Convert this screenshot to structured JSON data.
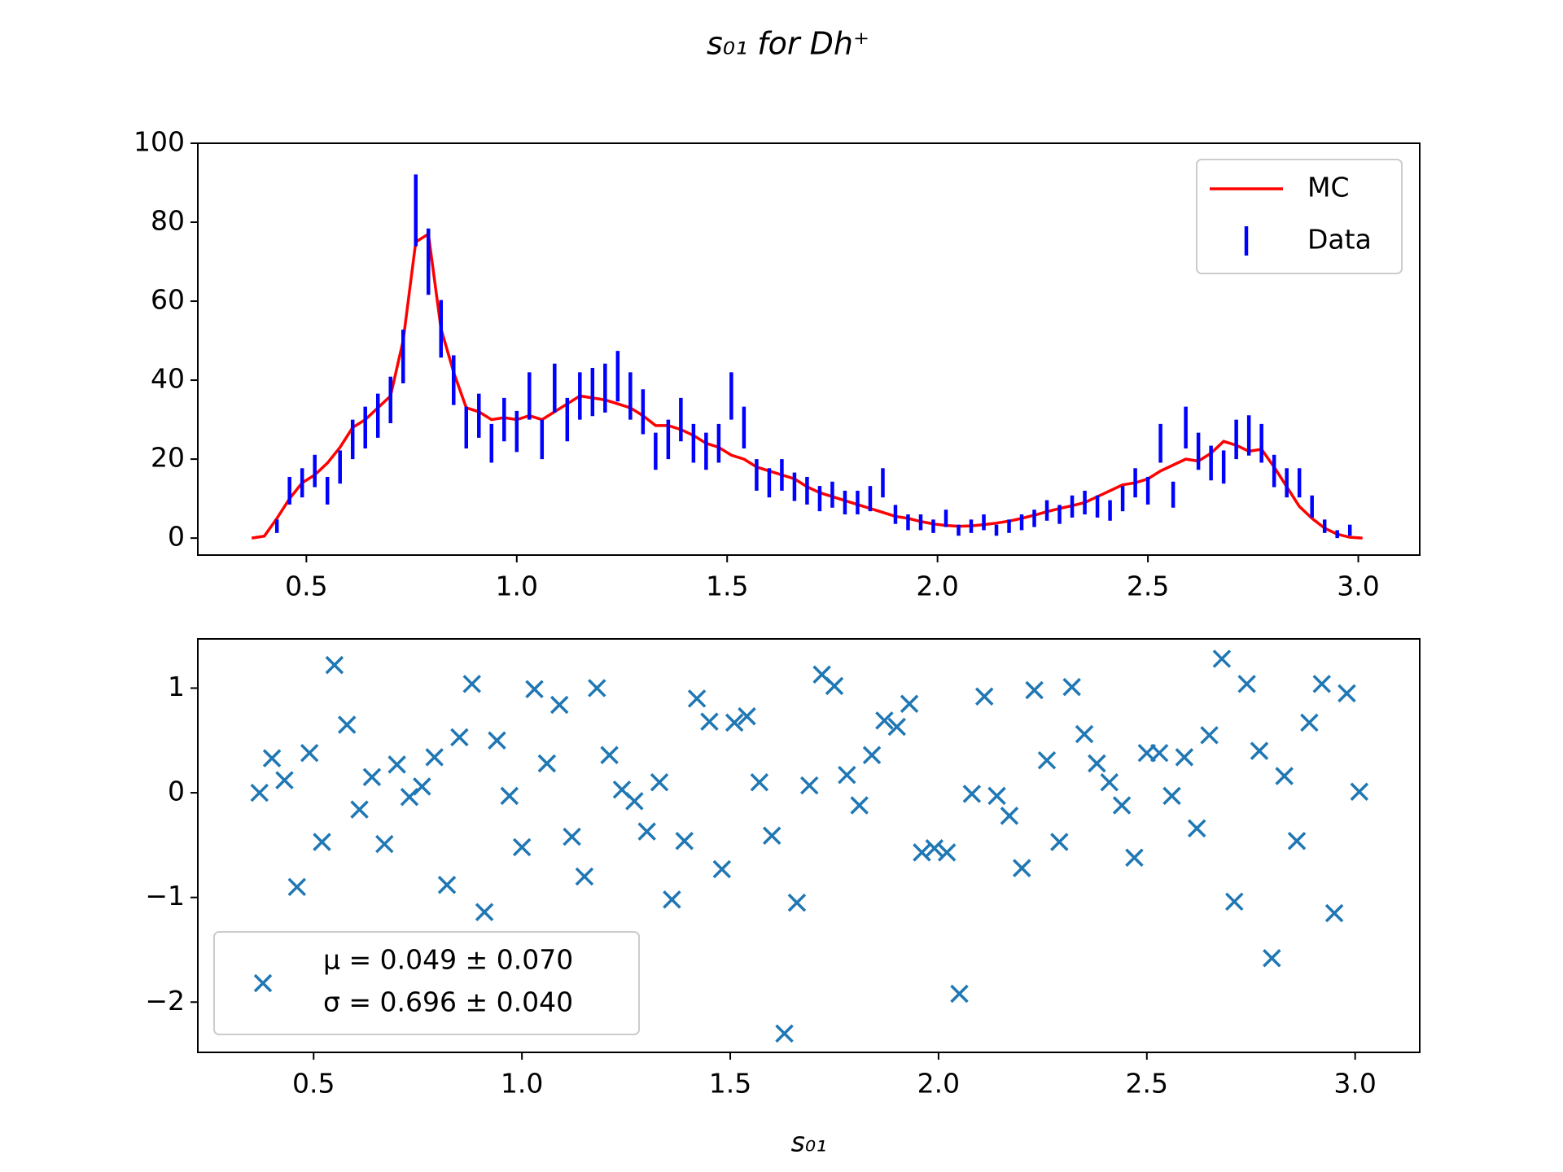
{
  "title": "s₀₁ for Dh⁺",
  "chart_data": [
    {
      "type": "line",
      "x": [
        0.37,
        0.4,
        0.43,
        0.46,
        0.49,
        0.52,
        0.55,
        0.58,
        0.61,
        0.64,
        0.67,
        0.7,
        0.73,
        0.76,
        0.79,
        0.82,
        0.85,
        0.88,
        0.91,
        0.94,
        0.97,
        1.0,
        1.03,
        1.06,
        1.09,
        1.12,
        1.15,
        1.18,
        1.21,
        1.24,
        1.27,
        1.3,
        1.33,
        1.36,
        1.39,
        1.42,
        1.45,
        1.48,
        1.51,
        1.54,
        1.57,
        1.6,
        1.63,
        1.66,
        1.69,
        1.72,
        1.75,
        1.78,
        1.81,
        1.84,
        1.87,
        1.9,
        1.93,
        1.96,
        1.99,
        2.02,
        2.05,
        2.08,
        2.11,
        2.14,
        2.17,
        2.2,
        2.23,
        2.26,
        2.29,
        2.32,
        2.35,
        2.38,
        2.41,
        2.44,
        2.47,
        2.5,
        2.53,
        2.56,
        2.59,
        2.62,
        2.65,
        2.68,
        2.71,
        2.74,
        2.77,
        2.8,
        2.83,
        2.86,
        2.89,
        2.92,
        2.95,
        2.98,
        3.01
      ],
      "series": [
        {
          "name": "MC",
          "style": "line",
          "color": "#ff0000",
          "values": [
            0,
            0.5,
            5,
            10,
            14,
            16,
            19,
            23,
            28,
            30,
            33,
            36,
            50,
            75,
            77,
            53,
            42,
            33,
            32,
            30,
            30.5,
            30,
            31,
            30,
            32,
            34,
            36,
            35.5,
            35,
            34,
            33,
            31,
            28.5,
            28.5,
            27.5,
            26,
            24,
            23,
            21,
            20,
            18,
            17,
            16,
            15,
            13,
            11.5,
            10.5,
            9.5,
            8.5,
            7.5,
            6.5,
            5.5,
            5,
            4.2,
            3.6,
            3.2,
            3,
            3.1,
            3.4,
            3.8,
            4.3,
            5,
            5.8,
            6.7,
            7.5,
            8.2,
            9,
            10.5,
            12,
            13.5,
            14,
            15,
            17,
            18.5,
            20,
            19.5,
            21.5,
            24.5,
            23.5,
            22,
            22.5,
            18,
            13,
            8,
            5,
            2.5,
            1,
            0.2,
            0
          ]
        },
        {
          "name": "Data",
          "style": "errorbar",
          "color": "#0000ff",
          "values": [
            0,
            0,
            3,
            12,
            14,
            17,
            12,
            18,
            25,
            28,
            31,
            35,
            46,
            83,
            70,
            53,
            40,
            28,
            31,
            24,
            30,
            27,
            36,
            25,
            38,
            30,
            36,
            37,
            38,
            41,
            36,
            32,
            22,
            25,
            30,
            24,
            22,
            24,
            36,
            28,
            16,
            14,
            16,
            13,
            12,
            10,
            11,
            9,
            9,
            10,
            14,
            6,
            4,
            4,
            3,
            5,
            2,
            3,
            4,
            2,
            3,
            4,
            5,
            7,
            6,
            8,
            9,
            8,
            7,
            10,
            14,
            12,
            24,
            11,
            28,
            22,
            19,
            18,
            25,
            26,
            24,
            17,
            14,
            14,
            8,
            3,
            1,
            2,
            0
          ],
          "errors": [
            0,
            0,
            1.7,
            3.5,
            3.7,
            4.1,
            3.5,
            4.2,
            5,
            5.3,
            5.6,
            5.9,
            6.8,
            9.1,
            8.4,
            7.3,
            6.3,
            5.3,
            5.6,
            4.9,
            5.5,
            5.2,
            6,
            5,
            6.2,
            5.5,
            6,
            6.1,
            6.2,
            6.4,
            6,
            5.7,
            4.7,
            5,
            5.5,
            4.9,
            4.7,
            4.9,
            6,
            5.3,
            4,
            3.7,
            4,
            3.6,
            3.5,
            3.2,
            3.3,
            3,
            3,
            3.2,
            3.7,
            2.4,
            2,
            2,
            1.7,
            2.2,
            1.4,
            1.7,
            2,
            1.4,
            1.7,
            2,
            2.2,
            2.6,
            2.4,
            2.8,
            3,
            2.8,
            2.6,
            3.2,
            3.7,
            3.5,
            4.9,
            3.3,
            5.3,
            4.7,
            4.4,
            4.2,
            5,
            5.1,
            4.9,
            4.1,
            3.7,
            3.7,
            2.8,
            1.7,
            1,
            1.4,
            0
          ]
        }
      ],
      "xlim": [
        0.242,
        3.146
      ],
      "ylim": [
        -4.3,
        100
      ],
      "xticks": [
        0.5,
        {
          "value": 1.0,
          "label": "1.0"
        },
        1.5,
        {
          "value": 2.0,
          "label": "2.0"
        },
        2.5,
        {
          "value": 3.0,
          "label": "3.0"
        }
      ],
      "yticks": [
        0,
        20,
        40,
        60,
        80,
        100
      ],
      "legend": "upper right"
    },
    {
      "type": "scatter",
      "xlabel": "s₀₁",
      "x": [
        0.37,
        0.4,
        0.43,
        0.46,
        0.49,
        0.52,
        0.55,
        0.58,
        0.61,
        0.64,
        0.67,
        0.7,
        0.73,
        0.76,
        0.79,
        0.82,
        0.85,
        0.88,
        0.91,
        0.94,
        0.97,
        1.0,
        1.03,
        1.06,
        1.09,
        1.12,
        1.15,
        1.18,
        1.21,
        1.24,
        1.27,
        1.3,
        1.33,
        1.36,
        1.39,
        1.42,
        1.45,
        1.48,
        1.51,
        1.54,
        1.57,
        1.6,
        1.63,
        1.66,
        1.69,
        1.72,
        1.75,
        1.78,
        1.81,
        1.84,
        1.87,
        1.9,
        1.93,
        1.96,
        1.99,
        2.02,
        2.05,
        2.08,
        2.11,
        2.14,
        2.17,
        2.2,
        2.23,
        2.26,
        2.29,
        2.32,
        2.35,
        2.38,
        2.41,
        2.44,
        2.47,
        2.5,
        2.53,
        2.56,
        2.59,
        2.62,
        2.65,
        2.68,
        2.71,
        2.74,
        2.77,
        2.8,
        2.83,
        2.86,
        2.89,
        2.92,
        2.95,
        2.98,
        3.01
      ],
      "series": [
        {
          "color": "#1f77b4",
          "values": [
            0,
            0.33,
            0.12,
            -0.9,
            0.38,
            -0.47,
            1.22,
            0.65,
            -0.16,
            0.15,
            -0.49,
            0.27,
            -0.04,
            0.06,
            0.34,
            -0.88,
            0.53,
            1.04,
            -1.14,
            0.5,
            -0.03,
            -0.52,
            0.99,
            0.28,
            0.84,
            -0.42,
            -0.8,
            1,
            0.36,
            0.03,
            -0.08,
            -0.37,
            0.1,
            -1.02,
            -0.46,
            0.9,
            0.68,
            -0.73,
            0.67,
            0.73,
            0.1,
            -0.41,
            -2.3,
            -1.05,
            0.07,
            1.13,
            1.02,
            0.17,
            -0.12,
            0.36,
            0.69,
            0.63,
            0.85,
            -0.57,
            -0.53,
            -0.57,
            -1.92,
            -0.01,
            0.92,
            -0.03,
            -0.22,
            -0.72,
            0.98,
            0.31,
            -0.47,
            1.01,
            0.56,
            0.28,
            0.1,
            -0.12,
            -0.62,
            0.38,
            0.38,
            -0.03,
            0.34,
            -0.34,
            0.55,
            1.28,
            -1.04,
            1.04,
            0.4,
            -1.58,
            0.16,
            -0.46,
            0.67,
            1.04,
            -1.15,
            0.95,
            0.01
          ]
        }
      ],
      "legend_lines": [
        "μ = 0.049 ± 0.070",
        "σ = 0.696 ± 0.040"
      ],
      "legend": "lower left",
      "xlim": [
        0.222,
        3.155
      ],
      "ylim": [
        -2.48,
        1.47
      ],
      "xticks": [
        0.5,
        {
          "value": 1.0,
          "label": "1.0"
        },
        1.5,
        {
          "value": 2.0,
          "label": "2.0"
        },
        2.5,
        {
          "value": 3.0,
          "label": "3.0"
        }
      ],
      "yticks": [
        {
          "value": -2,
          "label": "−2"
        },
        {
          "value": -1,
          "label": "−1"
        },
        0,
        1
      ]
    }
  ]
}
